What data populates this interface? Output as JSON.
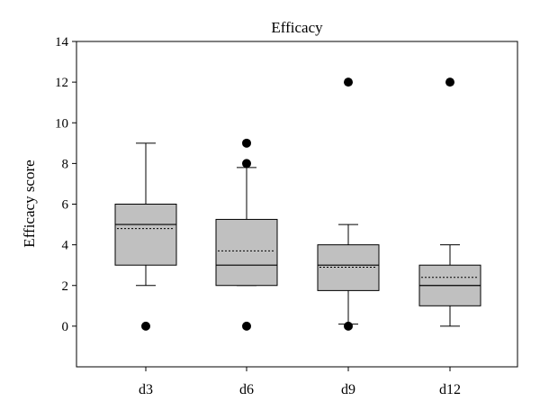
{
  "chart_data": {
    "type": "box",
    "title": "Efficacy",
    "xlabel": "",
    "ylabel": "Efficacy score",
    "ylim": [
      -2,
      14
    ],
    "y_ticks": [
      0,
      2,
      4,
      6,
      8,
      10,
      12,
      14
    ],
    "categories": [
      "d3",
      "d6",
      "d9",
      "d12"
    ],
    "grid": false,
    "colors": {
      "box_fill": "#c0c0c0",
      "stroke": "#000000"
    },
    "boxes": [
      {
        "category": "d3",
        "whisker_low": 2,
        "q1": 3,
        "median": 5,
        "mean": 4.8,
        "q3": 6,
        "whisker_high": 9,
        "outliers": [
          0
        ]
      },
      {
        "category": "d6",
        "whisker_low": 2,
        "q1": 2,
        "median": 3,
        "mean": 3.7,
        "q3": 5.25,
        "whisker_high": 7.8,
        "outliers": [
          0,
          8,
          9
        ]
      },
      {
        "category": "d9",
        "whisker_low": 0.1,
        "q1": 1.75,
        "median": 3,
        "mean": 2.9,
        "q3": 4,
        "whisker_high": 5,
        "outliers": [
          0,
          12
        ]
      },
      {
        "category": "d12",
        "whisker_low": 0,
        "q1": 1,
        "median": 2,
        "mean": 2.4,
        "q3": 3,
        "whisker_high": 4,
        "outliers": [
          12
        ]
      }
    ]
  }
}
